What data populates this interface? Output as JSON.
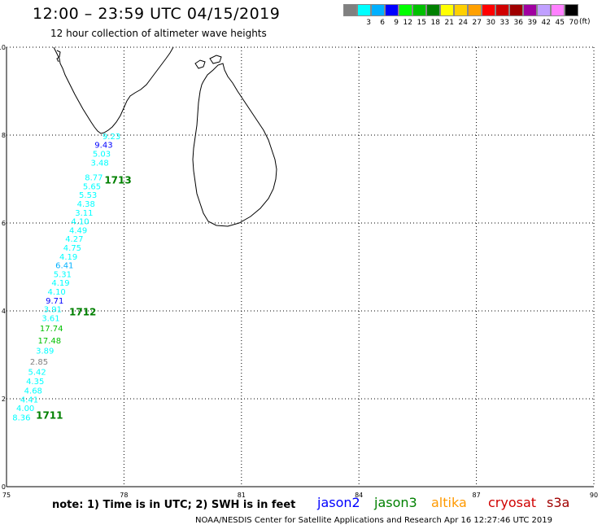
{
  "header": {
    "title": "12:00 – 23:59 UTC 04/15/2019",
    "subtitle": "12 hour collection of altimeter wave heights"
  },
  "legend": {
    "colors": [
      "#808080",
      "#00ffff",
      "#00b0ff",
      "#0000ff",
      "#00ff00",
      "#00c000",
      "#008000",
      "#ffff00",
      "#ffd000",
      "#ffa000",
      "#ff0000",
      "#d00000",
      "#a00000",
      "#a000a0",
      "#c0a0ff",
      "#ff80ff",
      "#000000"
    ],
    "labels": [
      "",
      "3",
      "6",
      "9",
      "12",
      "15",
      "18",
      "21",
      "24",
      "27",
      "30",
      "33",
      "36",
      "39",
      "42",
      "45",
      "70"
    ],
    "unit": "(ft)"
  },
  "axes": {
    "x_ticks": [
      "75",
      "78",
      "81",
      "84",
      "87",
      "90"
    ],
    "y_ticks": [
      "0",
      "2",
      "4",
      "6",
      "8",
      "10"
    ]
  },
  "observations": [
    {
      "text": "9.23",
      "lon": 77.45,
      "lat": 7.91,
      "color": "#00ffff"
    },
    {
      "text": "9.43",
      "lon": 77.25,
      "lat": 7.71,
      "color": "#0000ff"
    },
    {
      "text": "5.03",
      "lon": 77.2,
      "lat": 7.51,
      "color": "#00ffff"
    },
    {
      "text": "3.48",
      "lon": 77.15,
      "lat": 7.31,
      "color": "#00ffff"
    },
    {
      "text": "8.77",
      "lon": 77.0,
      "lat": 6.97,
      "color": "#00ffff"
    },
    {
      "text": "5.65",
      "lon": 76.95,
      "lat": 6.77,
      "color": "#00ffff"
    },
    {
      "text": "5.53",
      "lon": 76.85,
      "lat": 6.57,
      "color": "#00ffff"
    },
    {
      "text": "4.38",
      "lon": 76.8,
      "lat": 6.37,
      "color": "#00ffff"
    },
    {
      "text": "3.11",
      "lon": 76.75,
      "lat": 6.17,
      "color": "#00ffff"
    },
    {
      "text": "4.10",
      "lon": 76.65,
      "lat": 5.97,
      "color": "#00ffff"
    },
    {
      "text": "4.49",
      "lon": 76.6,
      "lat": 5.77,
      "color": "#00ffff"
    },
    {
      "text": "4.27",
      "lon": 76.5,
      "lat": 5.57,
      "color": "#00ffff"
    },
    {
      "text": "4.75",
      "lon": 76.45,
      "lat": 5.37,
      "color": "#00ffff"
    },
    {
      "text": "4.19",
      "lon": 76.35,
      "lat": 5.17,
      "color": "#00ffff"
    },
    {
      "text": "6.41",
      "lon": 76.25,
      "lat": 4.97,
      "color": "#00b0ff"
    },
    {
      "text": "5.31",
      "lon": 76.2,
      "lat": 4.77,
      "color": "#00ffff"
    },
    {
      "text": "4.19",
      "lon": 76.15,
      "lat": 4.57,
      "color": "#00ffff"
    },
    {
      "text": "4.10",
      "lon": 76.05,
      "lat": 4.37,
      "color": "#00ffff"
    },
    {
      "text": "9.71",
      "lon": 76.0,
      "lat": 4.17,
      "color": "#0000ff"
    },
    {
      "text": "3.91",
      "lon": 75.95,
      "lat": 3.97,
      "color": "#00ffff"
    },
    {
      "text": "3.61",
      "lon": 75.9,
      "lat": 3.77,
      "color": "#00ffff"
    },
    {
      "text": "17.74",
      "lon": 75.85,
      "lat": 3.54,
      "color": "#00c000"
    },
    {
      "text": "17.48",
      "lon": 75.8,
      "lat": 3.26,
      "color": "#00c000"
    },
    {
      "text": "3.89",
      "lon": 75.75,
      "lat": 3.03,
      "color": "#00ffff"
    },
    {
      "text": "2.85",
      "lon": 75.6,
      "lat": 2.78,
      "color": "#808080"
    },
    {
      "text": "5.42",
      "lon": 75.55,
      "lat": 2.55,
      "color": "#00ffff"
    },
    {
      "text": "4.35",
      "lon": 75.5,
      "lat": 2.33,
      "color": "#00ffff"
    },
    {
      "text": "4.68",
      "lon": 75.45,
      "lat": 2.12,
      "color": "#00ffff"
    },
    {
      "text": "4.41",
      "lon": 75.35,
      "lat": 1.92,
      "color": "#00ffff"
    },
    {
      "text": "4.00",
      "lon": 75.25,
      "lat": 1.72,
      "color": "#00ffff"
    },
    {
      "text": "8.36",
      "lon": 75.15,
      "lat": 1.51,
      "color": "#00ffff"
    }
  ],
  "track_labels": [
    {
      "text": "1713",
      "lon": 77.5,
      "lat": 6.9,
      "color": "#008000"
    },
    {
      "text": "1712",
      "lon": 76.6,
      "lat": 3.9,
      "color": "#008000"
    },
    {
      "text": "1711",
      "lon": 75.75,
      "lat": 1.55,
      "color": "#008000"
    }
  ],
  "footer": {
    "note": "note: 1) Time is in UTC; 2) SWH is in feet",
    "satellites": [
      {
        "name": "jason2",
        "color": "#0000ff"
      },
      {
        "name": "jason3",
        "color": "#008000"
      },
      {
        "name": "altika",
        "color": "#ff9900"
      },
      {
        "name": "cryosat",
        "color": "#d00000"
      },
      {
        "name": "s3a",
        "color": "#a00000"
      }
    ],
    "credit": "NOAA/NESDIS Center for Satellite Applications and Research   Apr 16 12:27:46 UTC 2019"
  }
}
